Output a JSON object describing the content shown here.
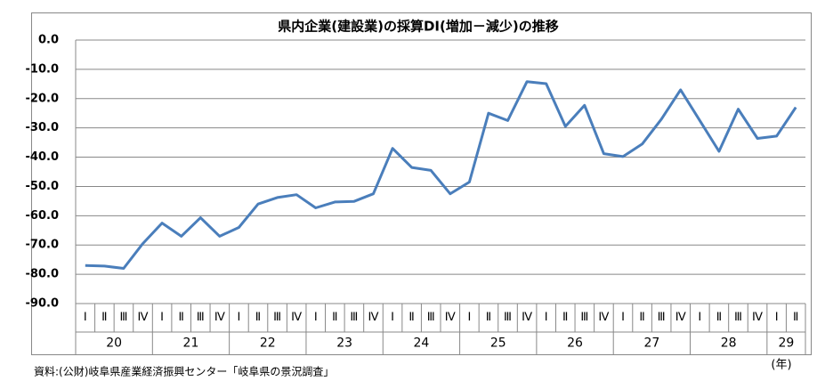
{
  "chart_data": {
    "type": "line",
    "title": "県内企業(建設業)の採算DI(増加－減少)の推移",
    "categories": [
      "Ⅰ",
      "Ⅱ",
      "Ⅲ",
      "Ⅳ",
      "Ⅰ",
      "Ⅱ",
      "Ⅲ",
      "Ⅳ",
      "Ⅰ",
      "Ⅱ",
      "Ⅲ",
      "Ⅳ",
      "Ⅰ",
      "Ⅱ",
      "Ⅲ",
      "Ⅳ",
      "Ⅰ",
      "Ⅱ",
      "Ⅲ",
      "Ⅳ",
      "Ⅰ",
      "Ⅱ",
      "Ⅲ",
      "Ⅳ",
      "Ⅰ",
      "Ⅱ",
      "Ⅲ",
      "Ⅳ",
      "Ⅰ",
      "Ⅱ",
      "Ⅲ",
      "Ⅳ",
      "Ⅰ",
      "Ⅱ",
      "Ⅲ",
      "Ⅳ",
      "Ⅰ",
      "Ⅱ"
    ],
    "year_labels": [
      "20",
      "21",
      "22",
      "23",
      "24",
      "25",
      "26",
      "27",
      "28",
      "29"
    ],
    "x_unit": "(年)",
    "series": [
      {
        "name": "採算DI",
        "color": "#4a7ebb",
        "values": [
          -77,
          -77.2,
          -78,
          -69.5,
          -62.5,
          -67,
          -60.7,
          -67,
          -64,
          -56,
          -53.8,
          -52.8,
          -57.3,
          -55.3,
          -55.1,
          -52.5,
          -37,
          -43.5,
          -44.5,
          -52.5,
          -48.5,
          -25,
          -27.5,
          -14.2,
          -14.9,
          -29.5,
          -22.3,
          -38.8,
          -39.8,
          -35.5,
          -27,
          -17,
          -27.5,
          -38,
          -23.6,
          -33.6,
          -32.8,
          -23
        ]
      }
    ],
    "ylim": [
      -90,
      0
    ],
    "yticks": [
      {
        "value": 0,
        "label": "0.0"
      },
      {
        "value": -10,
        "label": "-10.0"
      },
      {
        "value": -20,
        "label": "-20.0"
      },
      {
        "value": -30,
        "label": "-30.0"
      },
      {
        "value": -40,
        "label": "-40.0"
      },
      {
        "value": -50,
        "label": "-50.0"
      },
      {
        "value": -60,
        "label": "-60.0"
      },
      {
        "value": -70,
        "label": "-70.0"
      },
      {
        "value": -80,
        "label": "-80.0"
      },
      {
        "value": -90,
        "label": "-90.0"
      }
    ],
    "grid": true,
    "source": "資料:(公財)岐阜県産業経済振興センター「岐阜県の景況調査」"
  }
}
